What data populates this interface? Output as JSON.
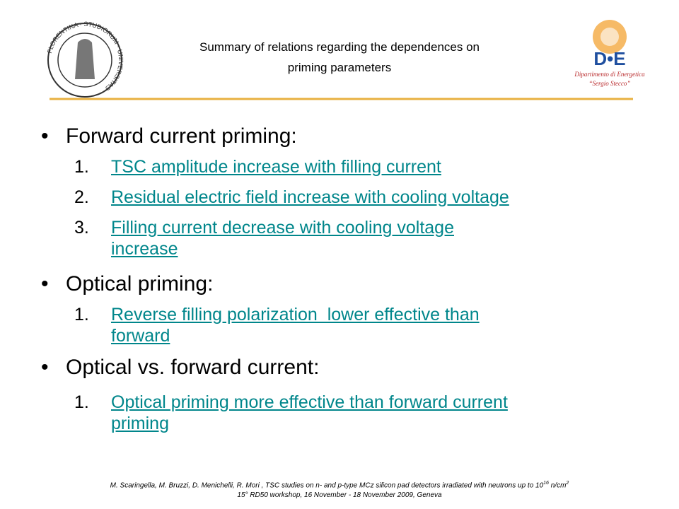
{
  "header": {
    "title_lines": [
      "Summary of relations regarding the dependences on",
      "priming parameters"
    ],
    "logo_left": {
      "words": [
        "STUDIORUM",
        "UNIVERSITAS",
        "FLORENTINA"
      ]
    },
    "logo_right": {
      "mark": "D•E",
      "line1": "Dipartimento di Energetica",
      "line2": "“Sergio Stecco”"
    }
  },
  "sections": [
    {
      "bullet": "•",
      "heading": "Forward current priming:",
      "items": [
        {
          "marker": "1.",
          "lines": [
            "TSC amplitude increase with filling current"
          ]
        },
        {
          "marker": "2.",
          "lines": [
            "Residual electric field increase with cooling voltage"
          ]
        },
        {
          "marker": "3.",
          "lines": [
            "Filling current decrease with cooling voltage",
            "increase"
          ]
        }
      ]
    },
    {
      "bullet": "•",
      "heading": "Optical priming:",
      "items": [
        {
          "marker": "1.",
          "lines": [
            "Reverse filling polarization  lower effective than",
            "forward"
          ]
        }
      ]
    },
    {
      "bullet": "•",
      "heading": "Optical vs. forward current:",
      "items": [
        {
          "marker": "1.",
          "lines": [
            "Optical priming more effective than forward current",
            "priming"
          ]
        }
      ]
    }
  ],
  "footer": {
    "line1": {
      "text": "M. Scaringella, M. Bruzzi, D. Menichelli, R. Mori , TSC studies on n- and p-type MCz silicon pad detectors irradiated with neutrons up to 10",
      "sup1": "16",
      "mid": " n/cm",
      "sup2": "2"
    },
    "line2": "15° RD50 workshop, 16 November - 18 November 2009, Geneva"
  }
}
